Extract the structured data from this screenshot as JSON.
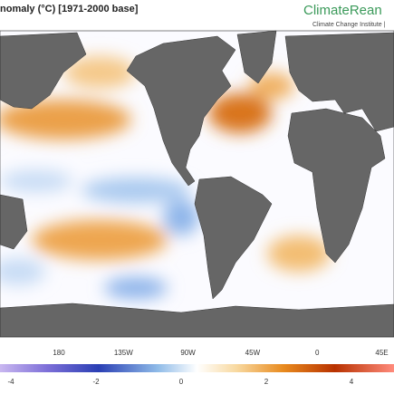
{
  "header": {
    "title": "nomaly (°C) [1971-2000 base]",
    "logo": "ClimateRean",
    "logo_subtitle": "Climate Change Institute |"
  },
  "map": {
    "longitude_labels": [
      "180",
      "135W",
      "90W",
      "45W",
      "0",
      "45E"
    ]
  },
  "colorbar": {
    "labels": [
      "-4",
      "-2",
      "0",
      "2",
      "4"
    ]
  }
}
